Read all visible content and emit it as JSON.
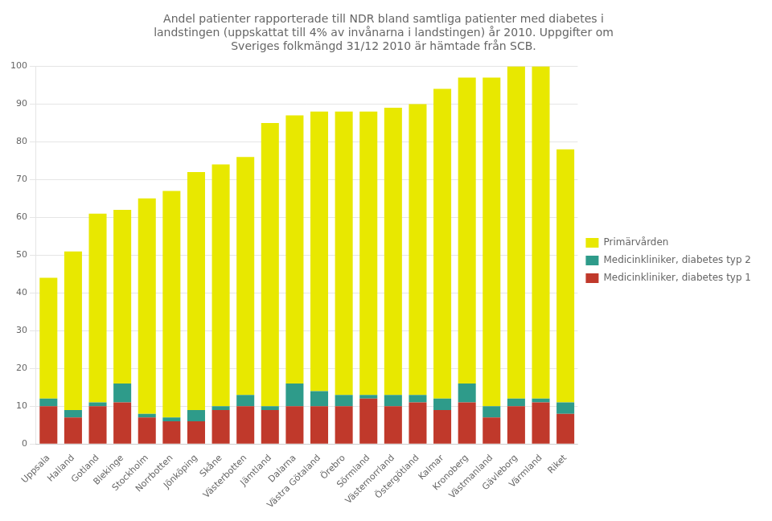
{
  "chart_data": {
    "type": "bar",
    "title": [
      "Andel patienter rapporterade till NDR bland samtliga patienter med diabetes i",
      "landstingen (uppskattat till 4% av invånarna i landstingen) år 2010. Uppgifter om",
      "Sveriges folkmängd 31/12 2010 är hämtade från SCB."
    ],
    "categories": [
      "Uppsala",
      "Halland",
      "Gotland",
      "Blekinge",
      "Stockholm",
      "Norrbotten",
      "Jönköping",
      "Skåne",
      "Västerbotten",
      "Jämtland",
      "Dalarna",
      "Västra Götaland",
      "Örebro",
      "Sörmland",
      "Västernorrland",
      "Östergötland",
      "Kalmar",
      "Kronoberg",
      "Västmanland",
      "Gävleborg",
      "Värmland",
      "Riket"
    ],
    "series": [
      {
        "name": "Medicinkliniker, diabetes typ 1",
        "color": "#c0392b",
        "values": [
          10,
          7,
          10,
          11,
          7,
          6,
          6,
          9,
          10,
          9,
          10,
          10,
          10,
          12,
          10,
          11,
          9,
          11,
          7,
          10,
          11,
          8
        ]
      },
      {
        "name": "Medicinkliniker, diabetes typ 2",
        "color": "#2e9b8a",
        "values": [
          2,
          2,
          1,
          5,
          1,
          1,
          3,
          1,
          3,
          1,
          6,
          4,
          3,
          1,
          3,
          2,
          3,
          5,
          3,
          2,
          1,
          3
        ]
      },
      {
        "name": "Primärvården",
        "color": "#e8e800",
        "values": [
          32,
          42,
          50,
          46,
          57,
          60,
          63,
          64,
          63,
          75,
          71,
          74,
          75,
          75,
          76,
          77,
          82,
          81,
          87,
          88,
          88,
          67
        ]
      }
    ],
    "stacked": true,
    "ylim": [
      0,
      100
    ],
    "yticks": [
      0,
      10,
      20,
      30,
      40,
      50,
      60,
      70,
      80,
      90,
      100
    ],
    "grid": true,
    "legend": "right"
  }
}
